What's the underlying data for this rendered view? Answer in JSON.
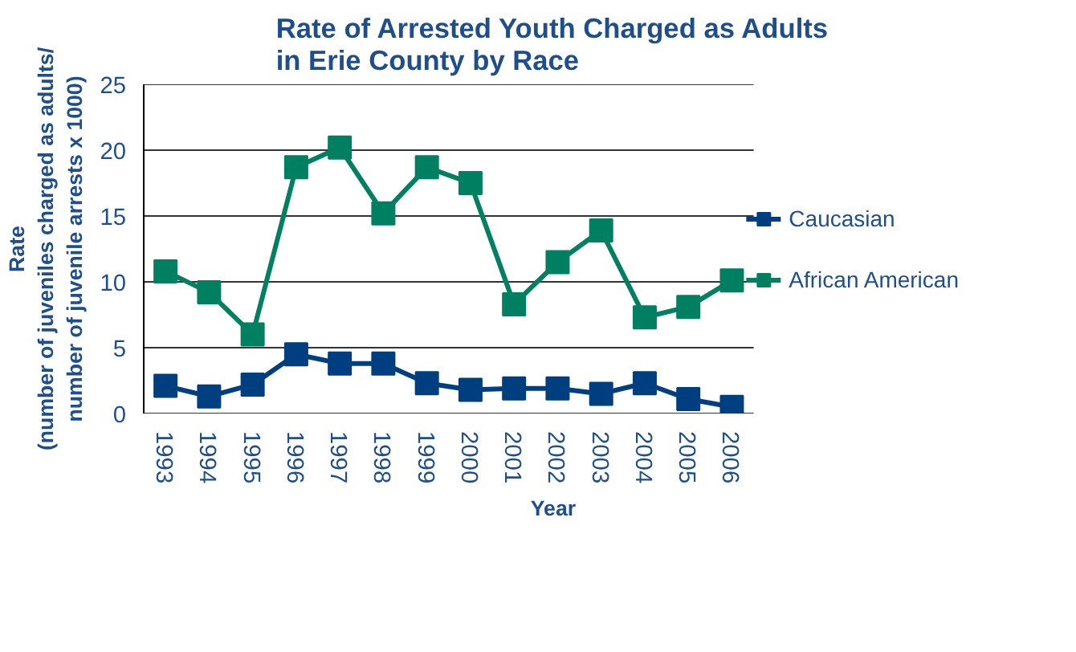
{
  "chart_data": {
    "type": "line",
    "title": "Rate of Arrested Youth Charged as Adults\nin Erie County by Race",
    "xlabel": "Year",
    "ylabel": "Rate\n(number of juveniles charged as adults/\nnumber of juvenile arrests x 1000)",
    "categories": [
      "1993",
      "1994",
      "1995",
      "1996",
      "1997",
      "1998",
      "1999",
      "2000",
      "2001",
      "2002",
      "2003",
      "2004",
      "2005",
      "2006"
    ],
    "series": [
      {
        "name": "Caucasian",
        "color": "#003f7f",
        "values": [
          2.1,
          1.3,
          2.2,
          4.5,
          3.8,
          3.8,
          2.3,
          1.8,
          1.9,
          1.9,
          1.5,
          2.3,
          1.1,
          0.5
        ]
      },
      {
        "name": "African American",
        "color": "#008060",
        "values": [
          10.8,
          9.2,
          6.0,
          18.7,
          20.2,
          15.2,
          18.7,
          17.5,
          8.3,
          11.5,
          13.9,
          7.3,
          8.1,
          10.1
        ]
      }
    ],
    "ylim": [
      0,
      25
    ],
    "yticks": [
      0,
      5,
      10,
      15,
      20,
      25
    ],
    "grid": "y",
    "legend": "right",
    "marker": "square",
    "line_style": "solid"
  }
}
